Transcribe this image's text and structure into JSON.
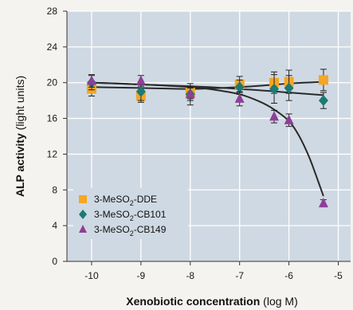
{
  "chart_data": {
    "type": "scatter",
    "xlabel_bold": "Xenobiotic concentration",
    "xlabel_unit": "(log M)",
    "ylabel_bold": "ALP activity",
    "ylabel_unit": "(light units)",
    "xlim": [
      -10.5,
      -4.75
    ],
    "ylim": [
      0,
      28
    ],
    "x_ticks": [
      -10,
      -9,
      -8,
      -7,
      -6,
      -5
    ],
    "y_ticks": [
      0,
      4,
      8,
      12,
      16,
      20,
      24,
      28
    ],
    "grid": true,
    "legend_position": "bottom-left",
    "colors": {
      "plot_background": "#cfd9e3",
      "grid": "#ffffff",
      "fit_line": "#2a2a2a"
    },
    "series": [
      {
        "name_parts": [
          "3-MeSO",
          "2",
          "-DDE"
        ],
        "marker": "square",
        "color": "#f5a623",
        "points": [
          {
            "x": -10,
            "y": 19.3,
            "err": 0.8
          },
          {
            "x": -9,
            "y": 18.5,
            "err": 0.7
          },
          {
            "x": -8,
            "y": 18.9,
            "err": 0.7
          },
          {
            "x": -7,
            "y": 19.8,
            "err": 0.9
          },
          {
            "x": -6.3,
            "y": 20.0,
            "err": 1.2
          },
          {
            "x": -6,
            "y": 20.1,
            "err": 1.3
          },
          {
            "x": -5.3,
            "y": 20.3,
            "err": 1.2
          }
        ]
      },
      {
        "name_parts": [
          "3-MeSO",
          "2",
          "-CB101"
        ],
        "marker": "diamond",
        "color": "#1d7a73",
        "points": [
          {
            "x": -10,
            "y": 20.0,
            "err": 0.8
          },
          {
            "x": -9,
            "y": 19.0,
            "err": 1.0
          },
          {
            "x": -8,
            "y": 18.7,
            "err": 1.2
          },
          {
            "x": -7,
            "y": 19.5,
            "err": 0.8
          },
          {
            "x": -6.3,
            "y": 19.3,
            "err": 1.6
          },
          {
            "x": -6,
            "y": 19.4,
            "err": 1.4
          },
          {
            "x": -5.3,
            "y": 18.0,
            "err": 0.9
          }
        ]
      },
      {
        "name_parts": [
          "3-MeSO",
          "2",
          "-CB149"
        ],
        "marker": "triangle",
        "color": "#8e3f98",
        "points": [
          {
            "x": -10,
            "y": 20.2,
            "err": 0.7
          },
          {
            "x": -9,
            "y": 20.2,
            "err": 0.6
          },
          {
            "x": -8,
            "y": 18.7,
            "err": 0.7
          },
          {
            "x": -7,
            "y": 18.2,
            "err": 0.8
          },
          {
            "x": -6.3,
            "y": 16.2,
            "err": 0.7
          },
          {
            "x": -6,
            "y": 15.8,
            "err": 0.7
          },
          {
            "x": -5.3,
            "y": 6.5,
            "err": 0.4
          }
        ]
      }
    ],
    "fit_curves": [
      {
        "series": 0,
        "points": [
          [
            -10,
            19.5
          ],
          [
            -9,
            19.4
          ],
          [
            -8,
            19.3
          ],
          [
            -7,
            19.5
          ],
          [
            -6,
            19.9
          ],
          [
            -5.3,
            20.1
          ]
        ]
      },
      {
        "series": 1,
        "points": [
          [
            -10,
            20.0
          ],
          [
            -9,
            19.8
          ],
          [
            -8,
            19.6
          ],
          [
            -7,
            19.3
          ],
          [
            -6,
            18.9
          ],
          [
            -5.3,
            18.6
          ]
        ]
      },
      {
        "series": 2,
        "points": [
          [
            -10,
            20.0
          ],
          [
            -9,
            19.8
          ],
          [
            -8,
            19.5
          ],
          [
            -7.5,
            19.2
          ],
          [
            -7,
            18.7
          ],
          [
            -6.6,
            17.9
          ],
          [
            -6.3,
            17.0
          ],
          [
            -6,
            15.7
          ],
          [
            -5.8,
            14.1
          ],
          [
            -5.6,
            11.8
          ],
          [
            -5.45,
            9.6
          ],
          [
            -5.3,
            7.3
          ]
        ]
      }
    ]
  }
}
